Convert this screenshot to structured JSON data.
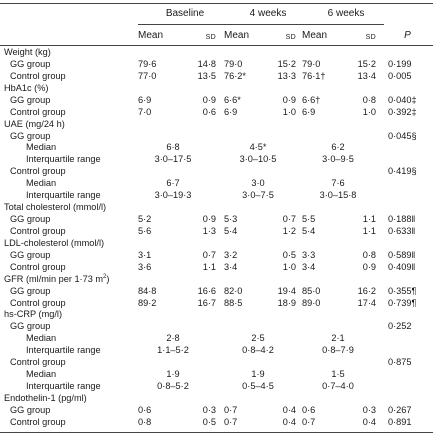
{
  "columns": {
    "baseline": "Baseline",
    "weeks4": "4 weeks",
    "weeks6": "6 weeks",
    "mean": "Mean",
    "sd": "SD",
    "p": "P"
  },
  "rows": [
    {
      "label": "Weight (kg)",
      "indent": 0,
      "kind": "section"
    },
    {
      "label": "GG group",
      "indent": 1,
      "kind": "msd",
      "b_mean": "79·6",
      "b_sd": "14·8",
      "w4_mean": "79·0",
      "w4_sd": "15·2",
      "w6_mean": "79·0",
      "w6_sd": "15·2",
      "p": "0·199"
    },
    {
      "label": "Control group",
      "indent": 1,
      "kind": "msd",
      "b_mean": "77·0",
      "b_sd": "13·5",
      "w4_mean": "76·2*",
      "w4_sd": "13·3",
      "w6_mean": "76·1†",
      "w6_sd": "13·4",
      "p": "0·005"
    },
    {
      "label": "HbA1c (%)",
      "indent": 0,
      "kind": "section"
    },
    {
      "label": "GG group",
      "indent": 1,
      "kind": "msd",
      "b_mean": "6·9",
      "b_sd": "0·9",
      "w4_mean": "6·6*",
      "w4_sd": "0·9",
      "w6_mean": "6·6†",
      "w6_sd": "0·8",
      "p": "0·040‡"
    },
    {
      "label": "Control group",
      "indent": 1,
      "kind": "msd",
      "b_mean": "7·0",
      "b_sd": "0·6",
      "w4_mean": "6·9",
      "w4_sd": "1·0",
      "w6_mean": "6·9",
      "w6_sd": "1·0",
      "p": "0·392‡"
    },
    {
      "label": "UAE (mg/24 h)",
      "indent": 0,
      "kind": "section"
    },
    {
      "label": "GG group",
      "indent": 1,
      "kind": "section",
      "p": "0·045§"
    },
    {
      "label": "Median",
      "indent": 2,
      "kind": "median",
      "b": "6·8",
      "w4": "4·5*",
      "w6": "6·2"
    },
    {
      "label": "Interquartile range",
      "indent": 2,
      "kind": "median",
      "b": "3·0–17·5",
      "w4": "3·0–10·5",
      "w6": "3·0–9·5"
    },
    {
      "label": "Control group",
      "indent": 1,
      "kind": "section",
      "p": "0·419§"
    },
    {
      "label": "Median",
      "indent": 2,
      "kind": "median",
      "b": "6·7",
      "w4": "3·0",
      "w6": "7·6"
    },
    {
      "label": "Interquartile range",
      "indent": 2,
      "kind": "median",
      "b": "3·0–19·3",
      "w4": "3·0–7·5",
      "w6": "3·0–15·8"
    },
    {
      "label": "Total cholesterol (mmol/l)",
      "indent": 0,
      "kind": "section"
    },
    {
      "label": "GG group",
      "indent": 1,
      "kind": "msd",
      "b_mean": "5·2",
      "b_sd": "0·9",
      "w4_mean": "5·3",
      "w4_sd": "0·7",
      "w6_mean": "5·5",
      "w6_sd": "1·1",
      "p": "0·188‖"
    },
    {
      "label": "Control group",
      "indent": 1,
      "kind": "msd",
      "b_mean": "5·6",
      "b_sd": "1·3",
      "w4_mean": "5·4",
      "w4_sd": "1·2",
      "w6_mean": "5·4",
      "w6_sd": "1·1",
      "p": "0·633‖"
    },
    {
      "label": "LDL-cholesterol (mmol/l)",
      "indent": 0,
      "kind": "section"
    },
    {
      "label": "GG group",
      "indent": 1,
      "kind": "msd",
      "b_mean": "3·1",
      "b_sd": "0·7",
      "w4_mean": "3·2",
      "w4_sd": "0·5",
      "w6_mean": "3·3",
      "w6_sd": "0·8",
      "p": "0·589‖"
    },
    {
      "label": "Control group",
      "indent": 1,
      "kind": "msd",
      "b_mean": "3·6",
      "b_sd": "1·1",
      "w4_mean": "3·4",
      "w4_sd": "1·0",
      "w6_mean": "3·4",
      "w6_sd": "0·9",
      "p": "0·409‖"
    },
    {
      "label": "GFR (ml/min per 1·73 m",
      "label_sup": "2",
      "label_end": ")",
      "indent": 0,
      "kind": "section"
    },
    {
      "label": "GG group",
      "indent": 1,
      "kind": "msd",
      "b_mean": "84·8",
      "b_sd": "16·6",
      "w4_mean": "82·0",
      "w4_sd": "19·4",
      "w6_mean": "85·0",
      "w6_sd": "16·2",
      "p": "0·355¶"
    },
    {
      "label": "Control group",
      "indent": 1,
      "kind": "msd",
      "b_mean": "89·2",
      "b_sd": "16·7",
      "w4_mean": "88·5",
      "w4_sd": "18·9",
      "w6_mean": "89·0",
      "w6_sd": "17·4",
      "p": "0·739¶"
    },
    {
      "label": "hs-CRP (mg/l)",
      "indent": 0,
      "kind": "section"
    },
    {
      "label": "GG group",
      "indent": 1,
      "kind": "section",
      "p": "0·252"
    },
    {
      "label": "Median",
      "indent": 2,
      "kind": "median",
      "b": "2·8",
      "w4": "2·5",
      "w6": "2·1"
    },
    {
      "label": "Interquartile range",
      "indent": 2,
      "kind": "median",
      "b": "1·1–5·2",
      "w4": "0·8–4·2",
      "w6": "0·8–7·9"
    },
    {
      "label": "Control group",
      "indent": 1,
      "kind": "section",
      "p": "0·875"
    },
    {
      "label": "Median",
      "indent": 2,
      "kind": "median",
      "b": "1·9",
      "w4": "1·9",
      "w6": "1·5"
    },
    {
      "label": "Interquartile range",
      "indent": 2,
      "kind": "median",
      "b": "0·8–5·2",
      "w4": "0·5–4·5",
      "w6": "0·7–4·0"
    },
    {
      "label": "Endothelin-1 (pg/ml)",
      "indent": 0,
      "kind": "section"
    },
    {
      "label": "GG group",
      "indent": 1,
      "kind": "msd",
      "b_mean": "0·6",
      "b_sd": "0·3",
      "w4_mean": "0·7",
      "w4_sd": "0·4",
      "w6_mean": "0·6",
      "w6_sd": "0·3",
      "p": "0·267"
    },
    {
      "label": "Control group",
      "indent": 1,
      "kind": "msd",
      "b_mean": "0·8",
      "b_sd": "0·5",
      "w4_mean": "0·7",
      "w4_sd": "0·4",
      "w6_mean": "0·7",
      "w6_sd": "0·4",
      "p": "0·891"
    }
  ]
}
